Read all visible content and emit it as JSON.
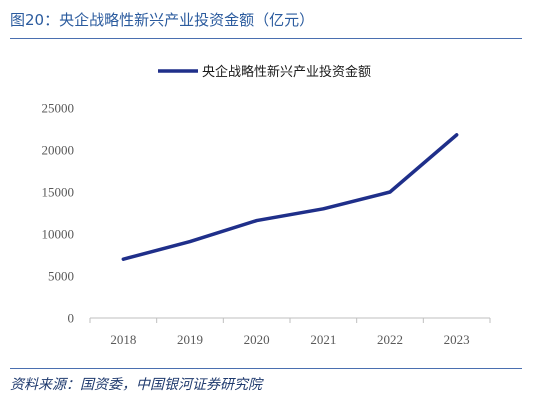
{
  "figure": {
    "title": "图20：央企战略性新兴产业投资金额（亿元）",
    "source": "资料来源：国资委，中国银河证券研究院"
  },
  "chart_data": {
    "type": "line",
    "title": "",
    "xlabel": "",
    "ylabel": "",
    "categories": [
      "2018",
      "2019",
      "2020",
      "2021",
      "2022",
      "2023"
    ],
    "series": [
      {
        "name": "央企战略性新兴产业投资金额",
        "values": [
          7000,
          9100,
          11600,
          13000,
          15000,
          21800
        ],
        "color": "#1f2f8a"
      }
    ],
    "ylim": [
      0,
      25000
    ],
    "yticks": [
      0,
      5000,
      10000,
      15000,
      20000,
      25000
    ],
    "grid": false,
    "legend": "top-center"
  }
}
